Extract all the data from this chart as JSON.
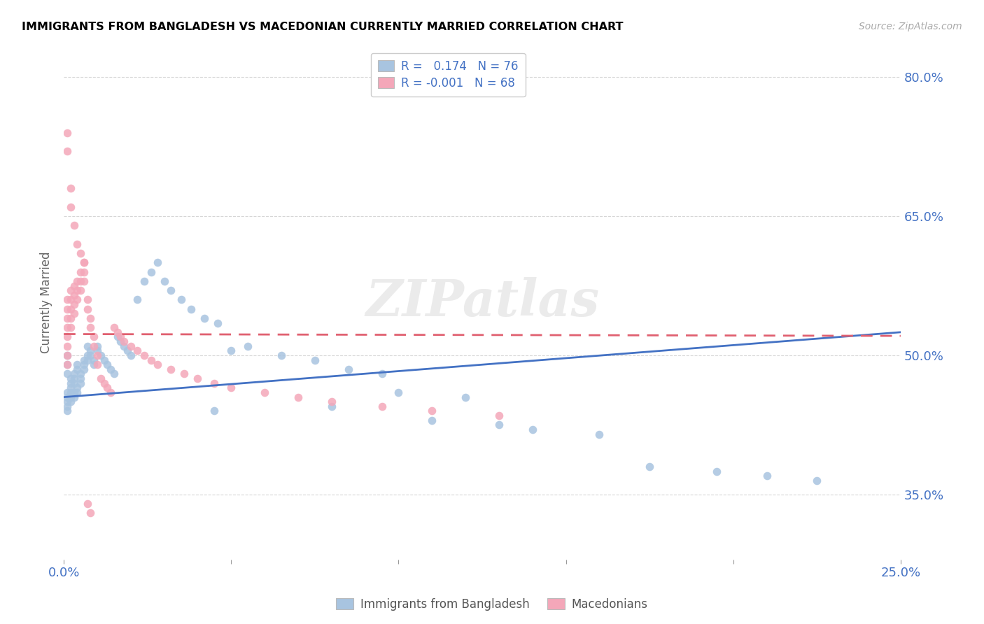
{
  "title": "IMMIGRANTS FROM BANGLADESH VS MACEDONIAN CURRENTLY MARRIED CORRELATION CHART",
  "source": "Source: ZipAtlas.com",
  "ylabel": "Currently Married",
  "xmin": 0.0,
  "xmax": 0.25,
  "ymin": 0.28,
  "ymax": 0.835,
  "yticks": [
    0.35,
    0.5,
    0.65,
    0.8
  ],
  "ytick_labels": [
    "35.0%",
    "50.0%",
    "65.0%",
    "80.0%"
  ],
  "xticks": [
    0.0,
    0.05,
    0.1,
    0.15,
    0.2,
    0.25
  ],
  "xtick_labels": [
    "0.0%",
    "",
    "",
    "",
    "",
    "25.0%"
  ],
  "legend_labels": [
    "Immigrants from Bangladesh",
    "Macedonians"
  ],
  "blue_R": "0.174",
  "blue_N": "76",
  "pink_R": "-0.001",
  "pink_N": "68",
  "blue_color": "#a8c4e0",
  "pink_color": "#f4a7b9",
  "blue_line_color": "#4472c4",
  "pink_line_color": "#e06070",
  "watermark": "ZIPatlas",
  "blue_line_x": [
    0.0,
    0.25
  ],
  "blue_line_y": [
    0.455,
    0.525
  ],
  "pink_line_x": [
    0.0,
    0.25
  ],
  "pink_line_y": [
    0.523,
    0.521
  ],
  "blue_pts_x": [
    0.001,
    0.001,
    0.001,
    0.001,
    0.001,
    0.001,
    0.001,
    0.001,
    0.002,
    0.002,
    0.002,
    0.002,
    0.002,
    0.002,
    0.003,
    0.003,
    0.003,
    0.003,
    0.003,
    0.004,
    0.004,
    0.004,
    0.004,
    0.005,
    0.005,
    0.005,
    0.006,
    0.006,
    0.006,
    0.007,
    0.007,
    0.007,
    0.008,
    0.008,
    0.009,
    0.009,
    0.01,
    0.01,
    0.011,
    0.012,
    0.013,
    0.014,
    0.015,
    0.016,
    0.017,
    0.018,
    0.019,
    0.02,
    0.022,
    0.024,
    0.026,
    0.028,
    0.03,
    0.032,
    0.035,
    0.038,
    0.042,
    0.046,
    0.05,
    0.055,
    0.065,
    0.075,
    0.085,
    0.095,
    0.11,
    0.13,
    0.14,
    0.16,
    0.175,
    0.195,
    0.21,
    0.225,
    0.045,
    0.08,
    0.1,
    0.12
  ],
  "blue_pts_y": [
    0.46,
    0.455,
    0.45,
    0.445,
    0.44,
    0.48,
    0.49,
    0.5,
    0.465,
    0.47,
    0.475,
    0.46,
    0.455,
    0.45,
    0.475,
    0.48,
    0.46,
    0.455,
    0.47,
    0.485,
    0.49,
    0.465,
    0.46,
    0.48,
    0.475,
    0.47,
    0.49,
    0.485,
    0.495,
    0.51,
    0.5,
    0.495,
    0.505,
    0.5,
    0.495,
    0.49,
    0.51,
    0.505,
    0.5,
    0.495,
    0.49,
    0.485,
    0.48,
    0.52,
    0.515,
    0.51,
    0.505,
    0.5,
    0.56,
    0.58,
    0.59,
    0.6,
    0.58,
    0.57,
    0.56,
    0.55,
    0.54,
    0.535,
    0.505,
    0.51,
    0.5,
    0.495,
    0.485,
    0.48,
    0.43,
    0.425,
    0.42,
    0.415,
    0.38,
    0.375,
    0.37,
    0.365,
    0.44,
    0.445,
    0.46,
    0.455
  ],
  "pink_pts_x": [
    0.001,
    0.001,
    0.001,
    0.001,
    0.001,
    0.001,
    0.001,
    0.001,
    0.002,
    0.002,
    0.002,
    0.002,
    0.002,
    0.003,
    0.003,
    0.003,
    0.003,
    0.004,
    0.004,
    0.004,
    0.005,
    0.005,
    0.005,
    0.006,
    0.006,
    0.006,
    0.007,
    0.007,
    0.008,
    0.008,
    0.009,
    0.009,
    0.01,
    0.01,
    0.011,
    0.012,
    0.013,
    0.014,
    0.015,
    0.016,
    0.017,
    0.018,
    0.02,
    0.022,
    0.024,
    0.026,
    0.028,
    0.032,
    0.036,
    0.04,
    0.045,
    0.05,
    0.06,
    0.07,
    0.08,
    0.095,
    0.11,
    0.13,
    0.001,
    0.001,
    0.002,
    0.002,
    0.003,
    0.004,
    0.005,
    0.006,
    0.007,
    0.008
  ],
  "pink_pts_y": [
    0.49,
    0.5,
    0.51,
    0.52,
    0.53,
    0.54,
    0.55,
    0.56,
    0.57,
    0.56,
    0.55,
    0.54,
    0.53,
    0.545,
    0.555,
    0.565,
    0.575,
    0.58,
    0.57,
    0.56,
    0.59,
    0.58,
    0.57,
    0.6,
    0.59,
    0.58,
    0.56,
    0.55,
    0.54,
    0.53,
    0.52,
    0.51,
    0.5,
    0.49,
    0.475,
    0.47,
    0.465,
    0.46,
    0.53,
    0.525,
    0.52,
    0.515,
    0.51,
    0.505,
    0.5,
    0.495,
    0.49,
    0.485,
    0.48,
    0.475,
    0.47,
    0.465,
    0.46,
    0.455,
    0.45,
    0.445,
    0.44,
    0.435,
    0.74,
    0.72,
    0.68,
    0.66,
    0.64,
    0.62,
    0.61,
    0.6,
    0.34,
    0.33
  ]
}
